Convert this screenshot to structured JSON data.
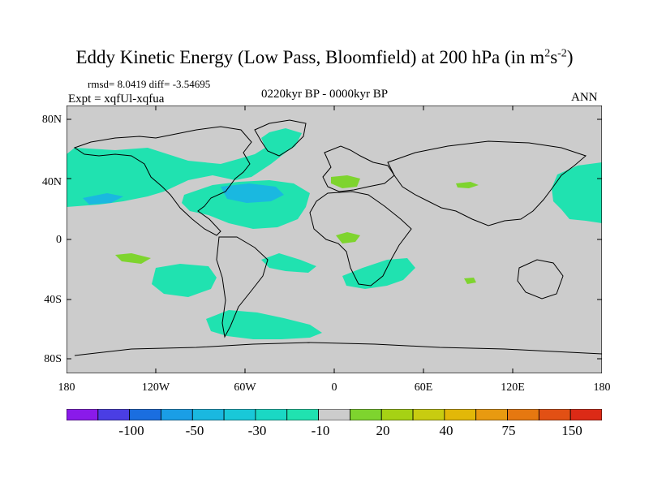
{
  "title_main": "Eddy Kinetic Energy (Low Pass, Bloomfield) at 200 hPa (in m",
  "title_exp1": "2",
  "title_mid": "s",
  "title_exp2": "-2",
  "title_end": ")",
  "stats": "rmsd= 8.0419 diff= -3.54695",
  "expt": "Expt = xqfUl-xqfua",
  "period": "0220kyr BP - 0000kyr BP",
  "season": "ANN",
  "y_ticks": [
    "80N",
    "40N",
    "0",
    "40S",
    "80S"
  ],
  "x_ticks": [
    "180",
    "120W",
    "60W",
    "0",
    "60E",
    "120E",
    "180"
  ],
  "colorbar": {
    "labels": [
      "-100",
      "-50",
      "-30",
      "-10",
      "20",
      "40",
      "75",
      "150"
    ],
    "colors": [
      "#8a1aea",
      "#4a3ee4",
      "#1a6ee0",
      "#1a9ee6",
      "#1ab8e0",
      "#19c8d8",
      "#1ad8c4",
      "#20e2b0",
      "#cccccc",
      "#7ed42e",
      "#a6d214",
      "#c8cc10",
      "#e2b808",
      "#e89a10",
      "#e67810",
      "#e25014",
      "#dc2a16"
    ]
  },
  "colors": {
    "land_outline": "#000000",
    "background_field": "#cccccc",
    "cyan_anomaly": "#20e2b0",
    "blue_anomaly": "#1ab8e0",
    "green_anomaly": "#7ed42e"
  }
}
